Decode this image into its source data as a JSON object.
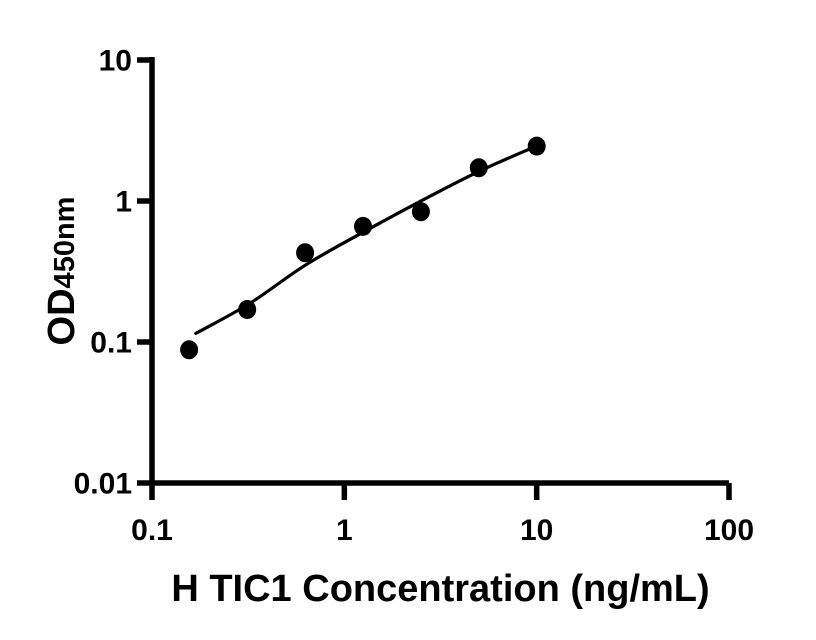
{
  "figure": {
    "background_color": "#ffffff",
    "ink_color": "#000000",
    "title": "",
    "legend": "none"
  },
  "chart_data": {
    "type": "scatter",
    "subtype": "standard-curve-with-fit-line",
    "title": "",
    "xlabel": "H TIC1 Concentration (ng/mL)",
    "ylabel": "OD450nm",
    "ylabel_main": "OD",
    "ylabel_sub": "450nm",
    "x_scale": "log",
    "y_scale": "log",
    "xlim": [
      0.1,
      100
    ],
    "ylim": [
      0.01,
      10
    ],
    "x_ticks": [
      0.1,
      1,
      10,
      100
    ],
    "x_tick_labels": [
      "0.1",
      "1",
      "10",
      "100"
    ],
    "y_ticks": [
      0.01,
      0.1,
      1,
      10
    ],
    "y_tick_labels": [
      "0.01",
      "0.1",
      "1",
      "10"
    ],
    "grid": false,
    "legend_position": "none",
    "series": [
      {
        "name": "standard-data-points",
        "type": "scatter",
        "marker": "filled-circle",
        "color": "#000000",
        "x": [
          0.156,
          0.3125,
          0.625,
          1.25,
          2.5,
          5,
          10
        ],
        "y": [
          0.088,
          0.17,
          0.43,
          0.66,
          0.84,
          1.72,
          2.45
        ]
      },
      {
        "name": "fitted-curve",
        "type": "line",
        "color": "#000000",
        "x": [
          0.169,
          0.323,
          0.625,
          1.25,
          2.57,
          4.96,
          9.46
        ],
        "y": [
          0.115,
          0.188,
          0.35,
          0.6,
          1.02,
          1.61,
          2.38
        ]
      }
    ]
  }
}
